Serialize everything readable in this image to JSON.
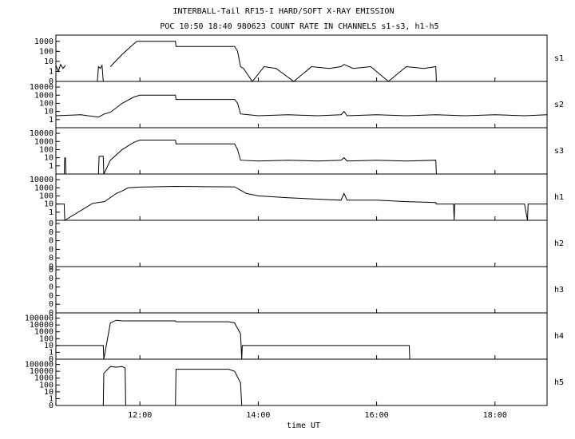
{
  "chart_data": [
    {
      "type": "line",
      "title": "INTERBALL-Tail RF15-I HARD/SOFT X-RAY EMISSION",
      "subtitle": "POC 10:50 18:40 980623  COUNT RATE IN CHANNELS s1-s3, h1-h5",
      "label": "s1",
      "yscale": "symlog",
      "color": "#000000",
      "xlim": [
        10.58,
        18.88
      ],
      "ylim": [
        0,
        2000
      ],
      "yticks": [
        0,
        1,
        10,
        100,
        1000
      ],
      "x": [
        10.58,
        10.62,
        10.66,
        10.7,
        10.74,
        10.75,
        11.28,
        11.3,
        11.33,
        11.36,
        11.38,
        11.39,
        11.5,
        11.7,
        11.9,
        11.95,
        12.6,
        12.61,
        13.6,
        13.65,
        13.7,
        13.75,
        13.9,
        14.1,
        14.3,
        14.6,
        14.9,
        15.2,
        15.4,
        15.45,
        15.6,
        15.9,
        16.2,
        16.5,
        16.8,
        17.0,
        17.01
      ],
      "values": [
        4,
        1,
        5,
        2,
        4,
        null,
        0,
        3,
        2,
        4,
        0,
        null,
        3,
        50,
        600,
        1000,
        1000,
        300,
        300,
        100,
        3,
        2,
        0,
        3,
        2,
        0,
        3,
        2,
        3,
        5,
        2,
        3,
        0,
        3,
        2,
        3,
        0
      ]
    },
    {
      "type": "line",
      "label": "s2",
      "yscale": "symlog",
      "color": "#000000",
      "xlim": [
        10.58,
        18.88
      ],
      "ylim": [
        0,
        20000
      ],
      "yticks": [
        1,
        10,
        100,
        1000,
        10000
      ],
      "x": [
        10.58,
        11.0,
        11.3,
        11.4,
        11.5,
        11.7,
        11.9,
        12.0,
        12.6,
        12.61,
        13.6,
        13.65,
        13.7,
        14.0,
        14.5,
        15.0,
        15.4,
        15.45,
        15.5,
        16.0,
        16.5,
        17.0,
        17.5,
        18.0,
        18.5,
        18.88
      ],
      "values": [
        3,
        4,
        2,
        5,
        8,
        100,
        600,
        1000,
        1000,
        300,
        300,
        100,
        5,
        3,
        4,
        3,
        4,
        10,
        3,
        4,
        3,
        4,
        3,
        4,
        3,
        4
      ]
    },
    {
      "type": "line",
      "label": "s3",
      "yscale": "symlog",
      "color": "#000000",
      "xlim": [
        10.58,
        18.88
      ],
      "ylim": [
        0,
        20000
      ],
      "yticks": [
        1,
        10,
        100,
        1000,
        10000
      ],
      "x": [
        10.58,
        10.72,
        10.73,
        10.74,
        10.75,
        11.3,
        11.31,
        11.38,
        11.39,
        11.5,
        11.7,
        11.9,
        12.0,
        12.6,
        12.61,
        13.6,
        13.65,
        13.7,
        14.0,
        14.5,
        15.0,
        15.4,
        15.45,
        15.5,
        16.0,
        16.5,
        17.0,
        17.01
      ],
      "values": [
        0,
        0,
        10,
        10,
        0,
        0,
        15,
        15,
        0,
        5,
        100,
        800,
        1500,
        1500,
        500,
        500,
        100,
        5,
        4,
        5,
        4,
        5,
        10,
        4,
        5,
        4,
        5,
        0
      ]
    },
    {
      "type": "line",
      "label": "h1",
      "yscale": "symlog",
      "color": "#000000",
      "xlim": [
        10.58,
        18.88
      ],
      "ylim": [
        0,
        20000
      ],
      "yticks": [
        1,
        10,
        100,
        1000,
        10000
      ],
      "x": [
        10.58,
        10.72,
        10.73,
        11.2,
        11.4,
        11.6,
        11.7,
        11.8,
        12.0,
        12.6,
        13.0,
        13.6,
        13.7,
        13.8,
        14.0,
        14.5,
        15.0,
        15.4,
        15.45,
        15.5,
        16.0,
        16.5,
        17.0,
        17.01,
        17.3,
        17.31,
        17.32,
        18.0,
        18.5,
        18.55,
        18.56,
        18.88
      ],
      "values": [
        10,
        10,
        0,
        12,
        20,
        200,
        400,
        1000,
        1200,
        1500,
        1400,
        1300,
        500,
        200,
        100,
        60,
        40,
        30,
        200,
        30,
        30,
        20,
        15,
        10,
        10,
        0,
        10,
        10,
        10,
        0,
        10,
        10
      ]
    },
    {
      "type": "line",
      "label": "h2",
      "yscale": "symlog",
      "color": "#000000",
      "xlim": [
        10.58,
        18.88
      ],
      "ylim": [
        0,
        1
      ],
      "yticks": [
        {
          "value": 0,
          "label": "0"
        },
        {
          "value": 0.2,
          "label": "0"
        },
        {
          "value": 0.4,
          "label": "0"
        },
        {
          "value": 0.6,
          "label": "0"
        },
        {
          "value": 0.8,
          "label": "0"
        },
        {
          "value": 1,
          "label": "0"
        }
      ],
      "x": [
        10.58,
        18.88
      ],
      "values": [
        0,
        0
      ]
    },
    {
      "type": "line",
      "label": "h3",
      "yscale": "symlog",
      "color": "#000000",
      "xlim": [
        10.58,
        18.88
      ],
      "ylim": [
        0,
        1
      ],
      "yticks": [
        {
          "value": 0,
          "label": "0"
        },
        {
          "value": 0.2,
          "label": "0"
        },
        {
          "value": 0.4,
          "label": "0"
        },
        {
          "value": 0.6,
          "label": "0"
        },
        {
          "value": 0.8,
          "label": "0"
        },
        {
          "value": 1,
          "label": "0"
        }
      ],
      "x": [
        10.58,
        18.88
      ],
      "values": [
        0,
        0
      ]
    },
    {
      "type": "line",
      "label": "h4",
      "yscale": "symlog",
      "color": "#000000",
      "xlim": [
        10.58,
        18.88
      ],
      "ylim": [
        0,
        200000
      ],
      "yticks": [
        0,
        1,
        10,
        100,
        1000,
        10000,
        100000
      ],
      "x": [
        10.58,
        11.38,
        11.39,
        11.5,
        11.6,
        11.7,
        11.8,
        12.6,
        12.61,
        13.5,
        13.6,
        13.7,
        13.72,
        13.73,
        16.55,
        16.56
      ],
      "values": [
        10,
        10,
        0,
        20000,
        50000,
        40000,
        40000,
        40000,
        30000,
        30000,
        20000,
        500,
        0,
        10,
        10,
        0
      ]
    },
    {
      "type": "line",
      "label": "h5",
      "yscale": "symlog",
      "color": "#000000",
      "xlim": [
        10.58,
        18.88
      ],
      "ylim": [
        0,
        200000
      ],
      "yticks": [
        0,
        1,
        10,
        100,
        1000,
        10000,
        100000
      ],
      "xlabel": "time UT",
      "xticks": [
        {
          "value": 12,
          "label": "12:00"
        },
        {
          "value": 14,
          "label": "14:00"
        },
        {
          "value": 16,
          "label": "16:00"
        },
        {
          "value": 18,
          "label": "18:00"
        }
      ],
      "x": [
        11.38,
        11.39,
        11.5,
        11.6,
        11.7,
        11.75,
        11.76,
        12.6,
        12.61,
        13.5,
        13.6,
        13.7,
        13.72,
        13.73
      ],
      "values": [
        0,
        5000,
        50000,
        40000,
        50000,
        30000,
        0,
        0,
        20000,
        20000,
        10000,
        200,
        0,
        0
      ]
    }
  ]
}
